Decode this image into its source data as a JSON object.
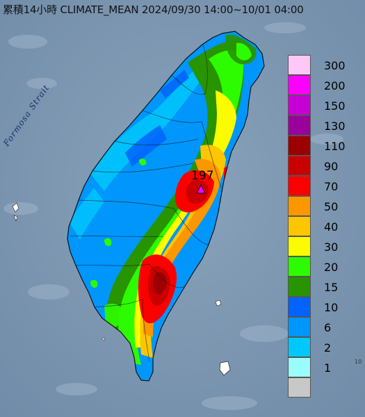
{
  "header": {
    "title": "累積14小時 CLIMATE_MEAN 2024/09/30 14:00~10/01 04:00"
  },
  "map": {
    "strait_label": "Formosa Strait",
    "peak_value": "197",
    "peak_marker_icon": "triangle-marker-icon",
    "corner_mark": "10"
  },
  "legend": {
    "bins": [
      {
        "label": "300",
        "color": "#fdc8f8"
      },
      {
        "label": "200",
        "color": "#fb00fc"
      },
      {
        "label": "150",
        "color": "#c600d4"
      },
      {
        "label": "130",
        "color": "#9a009b"
      },
      {
        "label": "110",
        "color": "#9c0003"
      },
      {
        "label": "90",
        "color": "#ca0000"
      },
      {
        "label": "70",
        "color": "#fc0000"
      },
      {
        "label": "50",
        "color": "#fc9700"
      },
      {
        "label": "40",
        "color": "#fcc600"
      },
      {
        "label": "30",
        "color": "#fcfc00"
      },
      {
        "label": "20",
        "color": "#2dfc00"
      },
      {
        "label": "15",
        "color": "#289400"
      },
      {
        "label": "10",
        "color": "#0064fc"
      },
      {
        "label": "6",
        "color": "#0096fc"
      },
      {
        "label": "2",
        "color": "#00c8fc"
      },
      {
        "label": "1",
        "color": "#9afdfc"
      },
      {
        "label": "",
        "color": "#c8c8c8"
      }
    ]
  }
}
